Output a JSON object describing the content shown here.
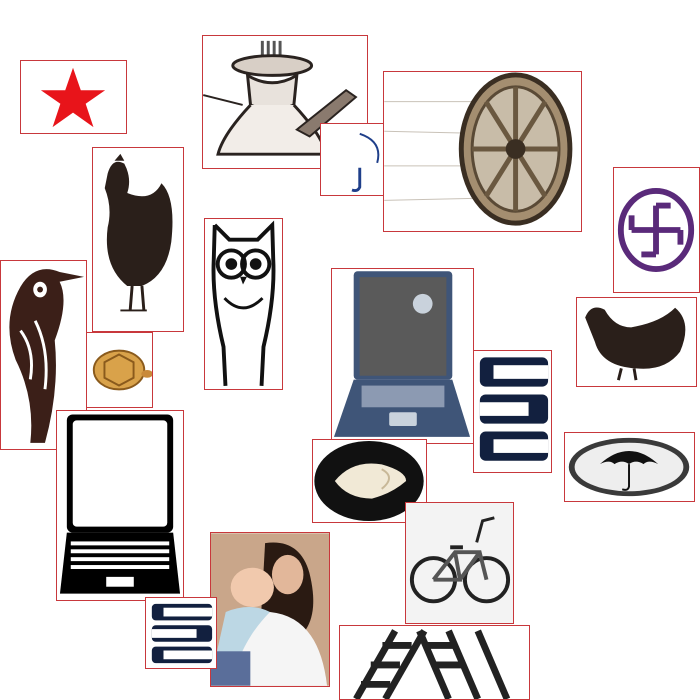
{
  "tiles": [
    {
      "id": "star",
      "icon": "red-star-icon"
    },
    {
      "id": "oil-lamp",
      "icon": "oil-lamp-icon"
    },
    {
      "id": "umbrella-handle-fragment",
      "icon": "umbrella-fragment-icon"
    },
    {
      "id": "cart-wheel",
      "icon": "wooden-wheel-icon"
    },
    {
      "id": "swastika",
      "icon": "swastika-symbol-icon"
    },
    {
      "id": "rooster-standing",
      "icon": "rooster-icon"
    },
    {
      "id": "woodpecker",
      "icon": "woodpecker-icon"
    },
    {
      "id": "tortoise",
      "icon": "tortoise-icon"
    },
    {
      "id": "owl",
      "icon": "owl-icon"
    },
    {
      "id": "laptop-blue",
      "icon": "laptop-icon"
    },
    {
      "id": "hen-right",
      "icon": "hen-icon"
    },
    {
      "id": "ladder-logo-right",
      "icon": "ladder-logo-icon"
    },
    {
      "id": "umbrella-badge",
      "icon": "umbrella-badge-icon"
    },
    {
      "id": "conch-shell",
      "icon": "conch-shell-icon"
    },
    {
      "id": "laptop-outline",
      "icon": "laptop-outline-icon"
    },
    {
      "id": "bicycle",
      "icon": "bicycle-icon"
    },
    {
      "id": "mother-child-photo",
      "icon": "mother-and-baby-photo-icon"
    },
    {
      "id": "ladder-logo-left",
      "icon": "ladder-logo-icon"
    },
    {
      "id": "ladder",
      "icon": "ladder-icon"
    }
  ],
  "colors": {
    "tile_border": "#c8383c",
    "star": "#e8141a",
    "swastika": "#5a2a7a",
    "laptop_blue": "#3f5578"
  }
}
